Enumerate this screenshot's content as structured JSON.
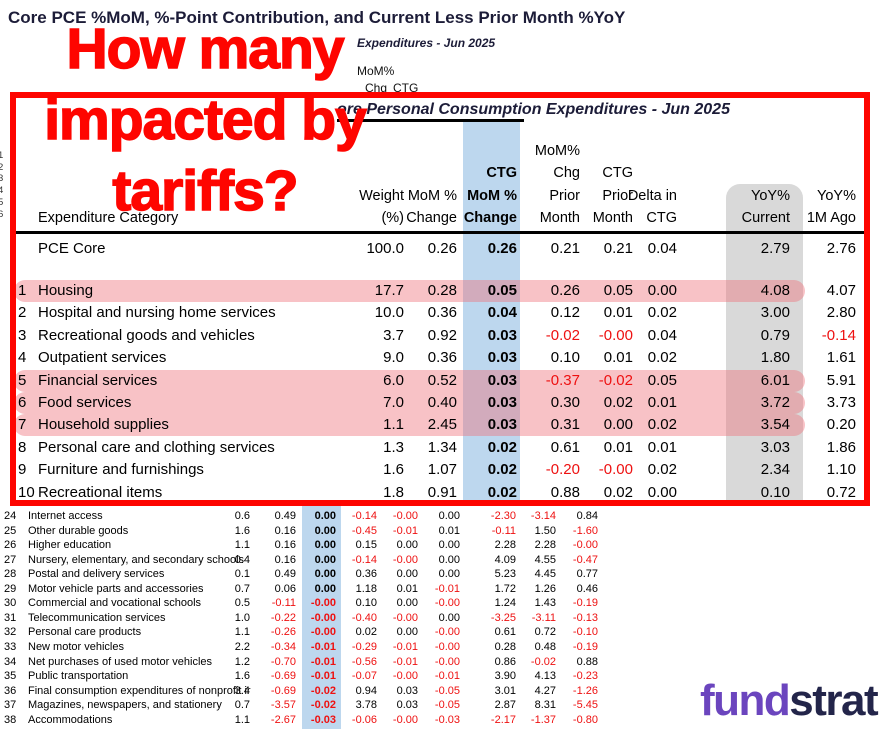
{
  "page_title": "Core PCE %MoM, %-Point Contribution, and Current Less Prior Month %YoY",
  "annotation": {
    "lines": [
      "How many",
      "impacted by",
      "tariffs?"
    ],
    "color": "#FE0500"
  },
  "background": {
    "table_title_fragment": "Expenditures - Jun 2025",
    "header_fragments": [
      "MoM%",
      "Chg",
      "CTG"
    ],
    "row_number_fragments": [
      "1",
      "2",
      "3",
      "4",
      "5",
      "6"
    ]
  },
  "callout": {
    "table_title": "ore Personal Consumption Expenditures - Jun 2025",
    "columns": {
      "category": "Expenditure Category",
      "weight": [
        "Weight",
        "(%)"
      ],
      "mom": [
        "MoM %",
        "Change"
      ],
      "ctg": [
        "CTG",
        "MoM %",
        "Change"
      ],
      "mom_prior": [
        "MoM%",
        "Chg",
        "Prior",
        "Month"
      ],
      "ctg_prior": [
        "CTG",
        "Prior",
        "Month"
      ],
      "delta_ctg": [
        "Delta in",
        "CTG"
      ],
      "yoy_current": [
        "YoY%",
        "Current"
      ],
      "yoy_1m": [
        "YoY%",
        "1M Ago"
      ]
    },
    "summary_row": {
      "category": "PCE Core",
      "weight": "100.0",
      "mom": "0.26",
      "ctg": "0.26",
      "mom_prior": "0.21",
      "ctg_prior": "0.21",
      "delta_ctg": "0.04",
      "yoy_current": "2.79",
      "yoy_1m": "2.76",
      "highlighted": false
    },
    "rows": [
      {
        "num": "1",
        "category": "Housing",
        "weight": "17.7",
        "mom": "0.28",
        "ctg": "0.05",
        "mom_prior": "0.26",
        "ctg_prior": "0.05",
        "delta_ctg": "0.00",
        "yoy_current": "4.08",
        "yoy_1m": "4.07",
        "highlighted": true
      },
      {
        "num": "2",
        "category": "Hospital and nursing home services",
        "weight": "10.0",
        "mom": "0.36",
        "ctg": "0.04",
        "mom_prior": "0.12",
        "ctg_prior": "0.01",
        "delta_ctg": "0.02",
        "yoy_current": "3.00",
        "yoy_1m": "2.80",
        "highlighted": false
      },
      {
        "num": "3",
        "category": "Recreational goods and vehicles",
        "weight": "3.7",
        "mom": "0.92",
        "ctg": "0.03",
        "mom_prior": "-0.02",
        "ctg_prior": "-0.00",
        "delta_ctg": "0.04",
        "yoy_current": "0.79",
        "yoy_1m": "-0.14",
        "highlighted": false
      },
      {
        "num": "4",
        "category": "Outpatient services",
        "weight": "9.0",
        "mom": "0.36",
        "ctg": "0.03",
        "mom_prior": "0.10",
        "ctg_prior": "0.01",
        "delta_ctg": "0.02",
        "yoy_current": "1.80",
        "yoy_1m": "1.61",
        "highlighted": false
      },
      {
        "num": "5",
        "category": "Financial services",
        "weight": "6.0",
        "mom": "0.52",
        "ctg": "0.03",
        "mom_prior": "-0.37",
        "ctg_prior": "-0.02",
        "delta_ctg": "0.05",
        "yoy_current": "6.01",
        "yoy_1m": "5.91",
        "highlighted": true
      },
      {
        "num": "6",
        "category": "Food services",
        "weight": "7.0",
        "mom": "0.40",
        "ctg": "0.03",
        "mom_prior": "0.30",
        "ctg_prior": "0.02",
        "delta_ctg": "0.01",
        "yoy_current": "3.72",
        "yoy_1m": "3.73",
        "highlighted": true
      },
      {
        "num": "7",
        "category": "Household supplies",
        "weight": "1.1",
        "mom": "2.45",
        "ctg": "0.03",
        "mom_prior": "0.31",
        "ctg_prior": "0.00",
        "delta_ctg": "0.02",
        "yoy_current": "3.54",
        "yoy_1m": "0.20",
        "highlighted": true
      },
      {
        "num": "8",
        "category": "Personal care and clothing services",
        "weight": "1.3",
        "mom": "1.34",
        "ctg": "0.02",
        "mom_prior": "0.61",
        "ctg_prior": "0.01",
        "delta_ctg": "0.01",
        "yoy_current": "3.03",
        "yoy_1m": "1.86",
        "highlighted": false
      },
      {
        "num": "9",
        "category": "Furniture and furnishings",
        "weight": "1.6",
        "mom": "1.07",
        "ctg": "0.02",
        "mom_prior": "-0.20",
        "ctg_prior": "-0.00",
        "delta_ctg": "0.02",
        "yoy_current": "2.34",
        "yoy_1m": "1.10",
        "highlighted": false
      },
      {
        "num": "10",
        "category": "Recreational items",
        "weight": "1.8",
        "mom": "0.91",
        "ctg": "0.02",
        "mom_prior": "0.88",
        "ctg_prior": "0.02",
        "delta_ctg": "0.00",
        "yoy_current": "0.10",
        "yoy_1m": "0.72",
        "highlighted": false
      }
    ]
  },
  "detail_table": {
    "rows": [
      {
        "num": "24",
        "category": "Internet access",
        "values": [
          "0.6",
          "0.49",
          "0.00",
          "-0.14",
          "-0.00",
          "0.00",
          "-2.30",
          "-3.14",
          "0.84"
        ]
      },
      {
        "num": "25",
        "category": "Other durable goods",
        "values": [
          "1.6",
          "0.16",
          "0.00",
          "-0.45",
          "-0.01",
          "0.01",
          "-0.11",
          "1.50",
          "-1.60"
        ]
      },
      {
        "num": "26",
        "category": "Higher education",
        "values": [
          "1.1",
          "0.16",
          "0.00",
          "0.15",
          "0.00",
          "0.00",
          "2.28",
          "2.28",
          "-0.00"
        ]
      },
      {
        "num": "27",
        "category": "Nursery, elementary, and secondary schools",
        "values": [
          "0.4",
          "0.16",
          "0.00",
          "-0.14",
          "-0.00",
          "0.00",
          "4.09",
          "4.55",
          "-0.47"
        ]
      },
      {
        "num": "28",
        "category": "Postal and delivery services",
        "values": [
          "0.1",
          "0.49",
          "0.00",
          "0.36",
          "0.00",
          "0.00",
          "5.23",
          "4.45",
          "0.77"
        ]
      },
      {
        "num": "29",
        "category": "Motor vehicle parts and accessories",
        "values": [
          "0.7",
          "0.06",
          "0.00",
          "1.18",
          "0.01",
          "-0.01",
          "1.72",
          "1.26",
          "0.46"
        ]
      },
      {
        "num": "30",
        "category": "Commercial and vocational schools",
        "values": [
          "0.5",
          "-0.11",
          "-0.00",
          "0.10",
          "0.00",
          "-0.00",
          "1.24",
          "1.43",
          "-0.19"
        ]
      },
      {
        "num": "31",
        "category": "Telecommunication services",
        "values": [
          "1.0",
          "-0.22",
          "-0.00",
          "-0.40",
          "-0.00",
          "0.00",
          "-3.25",
          "-3.11",
          "-0.13"
        ]
      },
      {
        "num": "32",
        "category": "Personal care products",
        "values": [
          "1.1",
          "-0.26",
          "-0.00",
          "0.02",
          "0.00",
          "-0.00",
          "0.61",
          "0.72",
          "-0.10"
        ]
      },
      {
        "num": "33",
        "category": "New motor vehicles",
        "values": [
          "2.2",
          "-0.34",
          "-0.01",
          "-0.29",
          "-0.01",
          "-0.00",
          "0.28",
          "0.48",
          "-0.19"
        ]
      },
      {
        "num": "34",
        "category": "Net purchases of used motor vehicles",
        "values": [
          "1.2",
          "-0.70",
          "-0.01",
          "-0.56",
          "-0.01",
          "-0.00",
          "0.86",
          "-0.02",
          "0.88"
        ]
      },
      {
        "num": "35",
        "category": "Public transportation",
        "values": [
          "1.6",
          "-0.69",
          "-0.01",
          "-0.07",
          "-0.00",
          "-0.01",
          "3.90",
          "4.13",
          "-0.23"
        ]
      },
      {
        "num": "36",
        "category": "Final consumption expenditures of nonprofit ir",
        "values": [
          "3.4",
          "-0.69",
          "-0.02",
          "0.94",
          "0.03",
          "-0.05",
          "3.01",
          "4.27",
          "-1.26"
        ]
      },
      {
        "num": "37",
        "category": "Magazines, newspapers, and stationery",
        "values": [
          "0.7",
          "-3.57",
          "-0.02",
          "3.78",
          "0.03",
          "-0.05",
          "2.87",
          "8.31",
          "-5.45"
        ]
      },
      {
        "num": "38",
        "category": "Accommodations",
        "values": [
          "1.1",
          "-2.67",
          "-0.03",
          "-0.06",
          "-0.00",
          "-0.03",
          "-2.17",
          "-1.37",
          "-0.80"
        ]
      }
    ]
  },
  "logo": {
    "part1": "fund",
    "part2": "strat",
    "part1_color": "#6B45BE",
    "part2_color": "#23254A"
  },
  "colors": {
    "annotation_red": "#FE0500",
    "callout_border": "#FE0500",
    "ctg_column_blue": "#BDD7EE",
    "yoy_column_gray": "#D9D9D9",
    "row_highlight_pink": "#F4C3C5",
    "negative_value_red": "#EE1111",
    "title_navy": "#1c1c38"
  }
}
